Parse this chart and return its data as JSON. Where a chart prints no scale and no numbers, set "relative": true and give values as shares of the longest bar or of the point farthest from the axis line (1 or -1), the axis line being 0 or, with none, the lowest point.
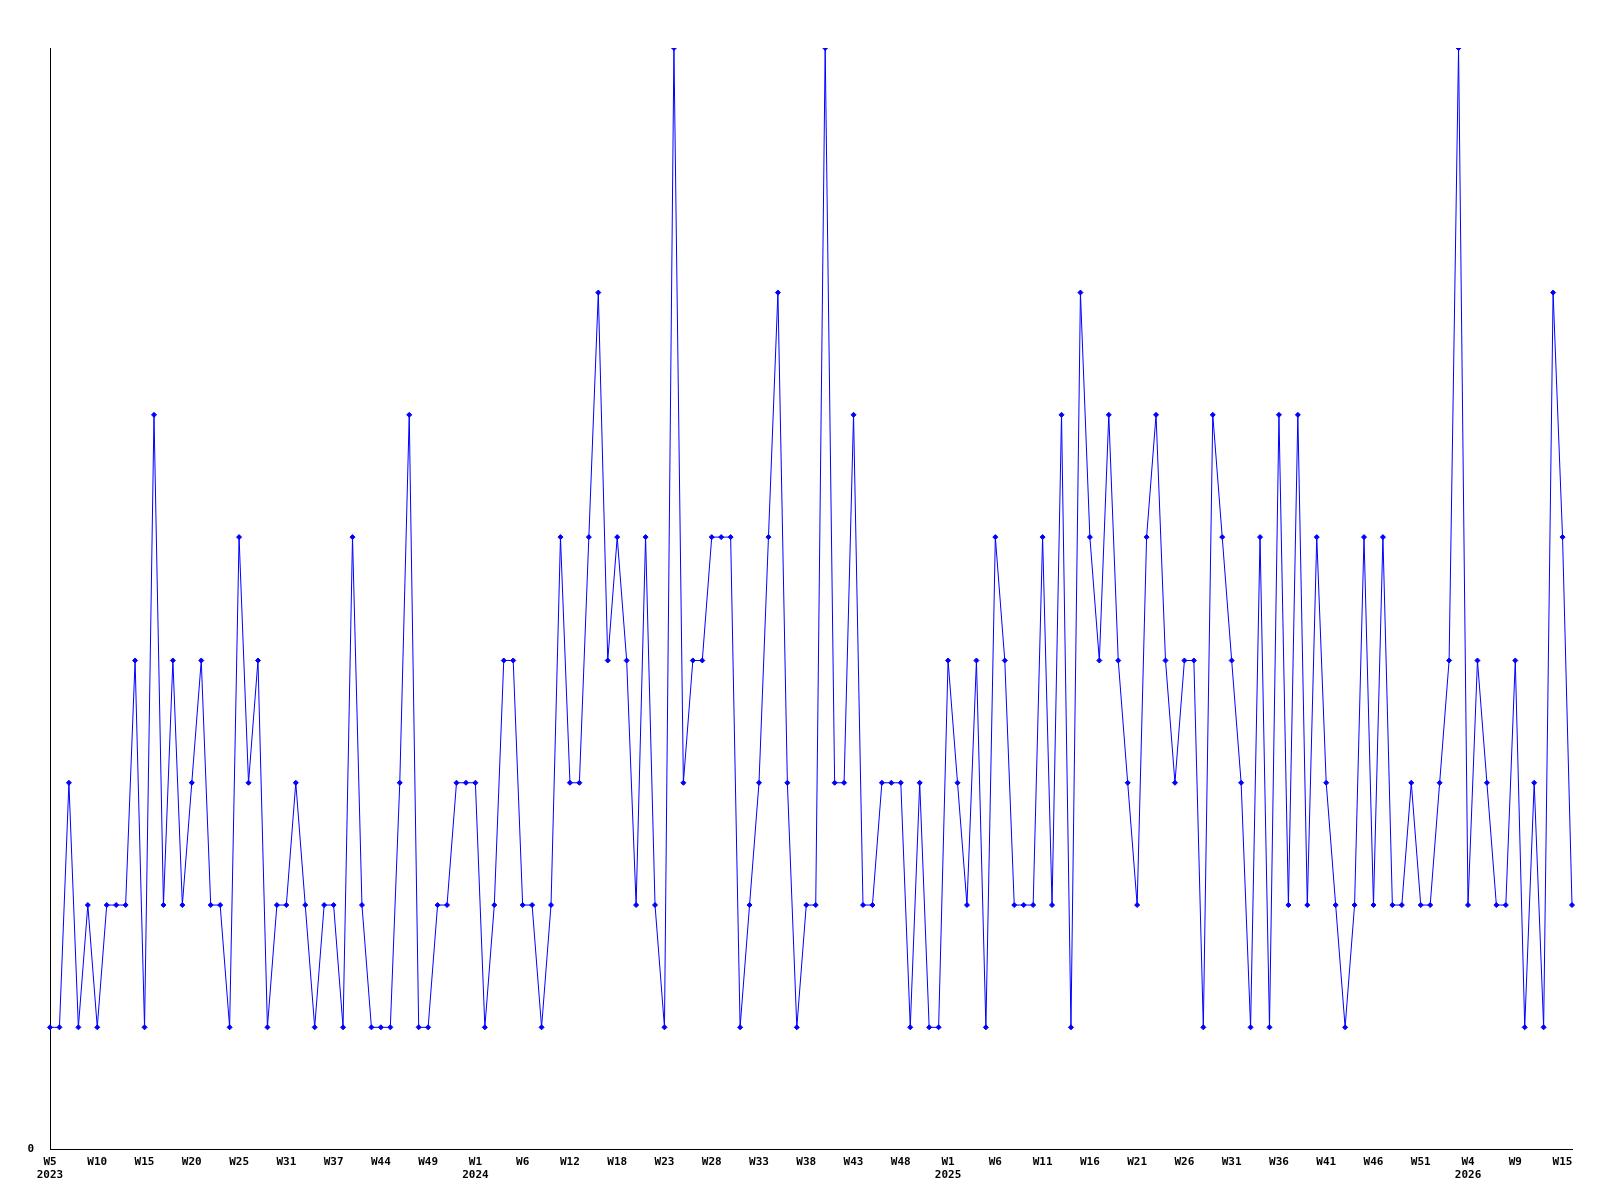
{
  "chart_data": {
    "type": "line",
    "relative": true,
    "grid": false,
    "legend": false,
    "marker": "diamond",
    "line_style": "solid",
    "annotations": [
      "0"
    ],
    "categories": [
      "W5\n2023",
      null,
      null,
      null,
      null,
      "W10",
      null,
      null,
      null,
      null,
      "W15",
      null,
      null,
      null,
      null,
      "W20",
      null,
      null,
      null,
      null,
      "W25",
      null,
      null,
      null,
      null,
      "W31",
      null,
      null,
      null,
      null,
      "W37",
      null,
      null,
      null,
      null,
      "W44",
      null,
      null,
      null,
      null,
      "W49",
      null,
      null,
      null,
      null,
      "W1\n2024",
      null,
      null,
      null,
      null,
      "W6",
      null,
      null,
      null,
      null,
      "W12",
      null,
      null,
      null,
      null,
      "W18",
      null,
      null,
      null,
      null,
      "W23",
      null,
      null,
      null,
      null,
      "W28",
      null,
      null,
      null,
      null,
      "W33",
      null,
      null,
      null,
      null,
      "W38",
      null,
      null,
      null,
      null,
      "W43",
      null,
      null,
      null,
      null,
      "W48",
      null,
      null,
      null,
      null,
      "W1\n2025",
      null,
      null,
      null,
      null,
      "W6",
      null,
      null,
      null,
      null,
      "W11",
      null,
      null,
      null,
      null,
      "W16",
      null,
      null,
      null,
      null,
      "W21",
      null,
      null,
      null,
      null,
      "W26",
      null,
      null,
      null,
      null,
      "W31",
      null,
      null,
      null,
      null,
      "W36",
      null,
      null,
      null,
      null,
      "W41",
      null,
      null,
      null,
      null,
      "W46",
      null,
      null,
      null,
      null,
      "W51",
      null,
      null,
      null,
      null,
      "W4\n2026",
      null,
      null,
      null,
      null,
      "W9",
      null,
      null,
      null,
      null,
      "W15",
      null
    ],
    "series": [
      {
        "color": "#0000ff",
        "values": [
          0.111,
          0.111,
          0.333,
          0.111,
          0.222,
          0.111,
          0.222,
          0.222,
          0.222,
          0.444,
          0.111,
          0.667,
          0.222,
          0.444,
          0.222,
          0.333,
          0.444,
          0.222,
          0.222,
          0.111,
          0.556,
          0.333,
          0.444,
          0.111,
          0.222,
          0.222,
          0.333,
          0.222,
          0.111,
          0.222,
          0.222,
          0.111,
          0.556,
          0.222,
          0.111,
          0.111,
          0.111,
          0.333,
          0.667,
          0.111,
          0.111,
          0.222,
          0.222,
          0.333,
          0.333,
          0.333,
          0.111,
          0.222,
          0.444,
          0.444,
          0.222,
          0.222,
          0.111,
          0.222,
          0.556,
          0.333,
          0.333,
          0.556,
          0.778,
          0.444,
          0.556,
          0.444,
          0.222,
          0.556,
          0.222,
          0.111,
          1,
          0.333,
          0.444,
          0.444,
          0.556,
          0.556,
          0.556,
          0.111,
          0.222,
          0.333,
          0.556,
          0.778,
          0.333,
          0.111,
          0.222,
          0.222,
          1,
          0.333,
          0.333,
          0.667,
          0.222,
          0.222,
          0.333,
          0.333,
          0.333,
          0.111,
          0.333,
          0.111,
          0.111,
          0.444,
          0.333,
          0.222,
          0.444,
          0.111,
          0.556,
          0.444,
          0.222,
          0.222,
          0.222,
          0.556,
          0.222,
          0.667,
          0.111,
          0.778,
          0.556,
          0.444,
          0.667,
          0.444,
          0.333,
          0.222,
          0.556,
          0.667,
          0.444,
          0.333,
          0.444,
          0.444,
          0.111,
          0.667,
          0.556,
          0.444,
          0.333,
          0.111,
          0.556,
          0.111,
          0.667,
          0.222,
          0.667,
          0.222,
          0.556,
          0.333,
          0.222,
          0.111,
          0.222,
          0.556,
          0.222,
          0.556,
          0.222,
          0.222,
          0.333,
          0.222,
          0.222,
          0.333,
          0.444,
          1,
          0.222,
          0.444,
          0.333,
          0.222,
          0.222,
          0.444,
          0.111,
          0.333,
          0.111,
          0.778,
          0.556,
          0.222
        ]
      }
    ]
  }
}
